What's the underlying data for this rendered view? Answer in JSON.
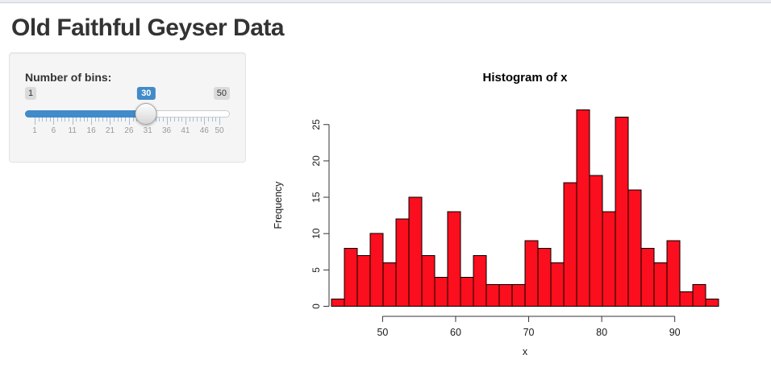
{
  "page": {
    "title": "Old Faithful Geyser Data"
  },
  "sidebar": {
    "bins_label": "Number of bins:",
    "slider": {
      "min": 1,
      "max": 50,
      "value": 30,
      "min_label": "1",
      "max_label": "50",
      "value_label": "30",
      "grid_labels": [
        1,
        6,
        11,
        16,
        21,
        26,
        31,
        36,
        41,
        46,
        50
      ],
      "accent_color": "#428bca"
    }
  },
  "chart_data": {
    "type": "bar",
    "title": "Histogram of x",
    "xlabel": "x",
    "ylabel": "Frequency",
    "bin_start": 43,
    "bin_end": 96,
    "bins": 30,
    "frequencies": [
      1,
      8,
      7,
      10,
      6,
      12,
      15,
      7,
      4,
      13,
      4,
      7,
      3,
      3,
      3,
      9,
      8,
      6,
      17,
      27,
      18,
      13,
      26,
      16,
      8,
      6,
      9,
      2,
      3,
      1
    ],
    "x_ticks": [
      50,
      60,
      70,
      80,
      90
    ],
    "y_ticks": [
      0,
      5,
      10,
      15,
      20,
      25
    ],
    "ylim": [
      0,
      27
    ],
    "grid": false,
    "legend": false,
    "bar_color": "#fb0e1d",
    "bar_border_color": "#000000",
    "axis_color": "#333333"
  }
}
